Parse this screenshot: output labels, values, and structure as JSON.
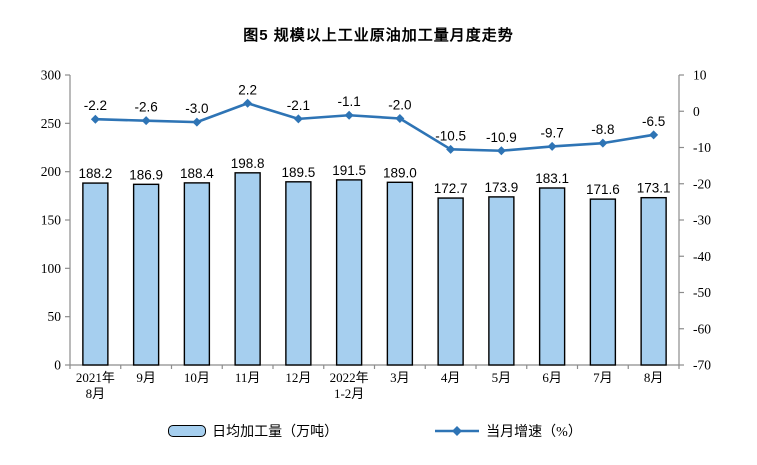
{
  "chart_data": {
    "type": "bar",
    "combo": "bar+line",
    "title": "图5 规模以上工业原油加工量月度走势",
    "categories": [
      "2021年\n8月",
      "9月",
      "10月",
      "11月",
      "12月",
      "2022年\n1-2月",
      "3月",
      "4月",
      "5月",
      "6月",
      "7月",
      "8月"
    ],
    "series": [
      {
        "name": "日均加工量（万吨）",
        "type": "bar",
        "axis": "left",
        "values": [
          188.2,
          186.9,
          188.4,
          198.8,
          189.5,
          191.5,
          189.0,
          172.7,
          173.9,
          183.1,
          171.6,
          173.1
        ]
      },
      {
        "name": "当月增速（%）",
        "type": "line",
        "axis": "right",
        "values": [
          -2.2,
          -2.6,
          -3.0,
          2.2,
          -2.1,
          -1.1,
          -2.0,
          -10.5,
          -10.9,
          -9.7,
          -8.8,
          -6.5
        ]
      }
    ],
    "left_axis": {
      "min": 0,
      "max": 300,
      "step": 50,
      "ticks": [
        300,
        250,
        200,
        150,
        100,
        50,
        0
      ]
    },
    "right_axis": {
      "min": -70,
      "max": 10,
      "step": 10,
      "ticks": [
        10,
        0,
        -10,
        -20,
        -30,
        -40,
        -50,
        -60,
        -70
      ]
    },
    "legend": {
      "position": "bottom",
      "bar": "日均加工量（万吨）",
      "line": "当月增速（%）"
    },
    "grid": "off",
    "colors": {
      "bar_fill": "#A6CFEF",
      "bar_border": "#000000",
      "line": "#2E74B5",
      "axis": "#8C8C8C",
      "text": "#000000",
      "background": "#FFFFFF"
    }
  }
}
